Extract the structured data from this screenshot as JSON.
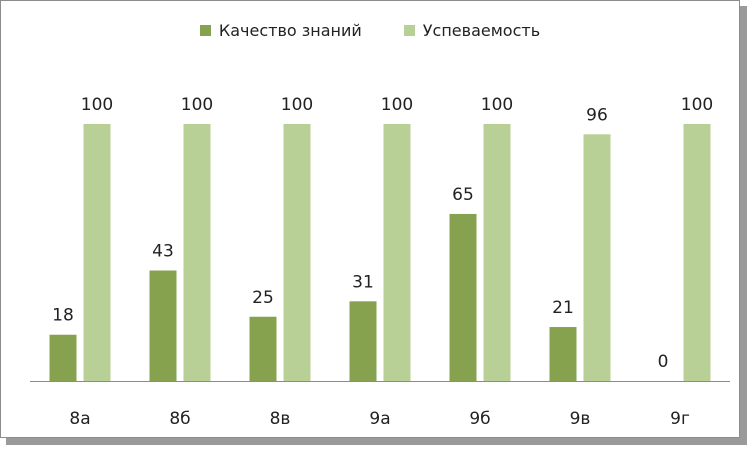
{
  "chart_data": {
    "type": "bar",
    "categories": [
      "8а",
      "8б",
      "8в",
      "9а",
      "9б",
      "9в",
      "9г"
    ],
    "series": [
      {
        "name": "Качество знаний",
        "color": "#86a24e",
        "values": [
          18,
          43,
          25,
          31,
          65,
          21,
          0
        ]
      },
      {
        "name": "Успеваемость",
        "color": "#b8cf96",
        "values": [
          100,
          100,
          100,
          100,
          100,
          96,
          100
        ]
      }
    ],
    "ylim": [
      0,
      100
    ],
    "grid": false,
    "legend_position": "top"
  }
}
